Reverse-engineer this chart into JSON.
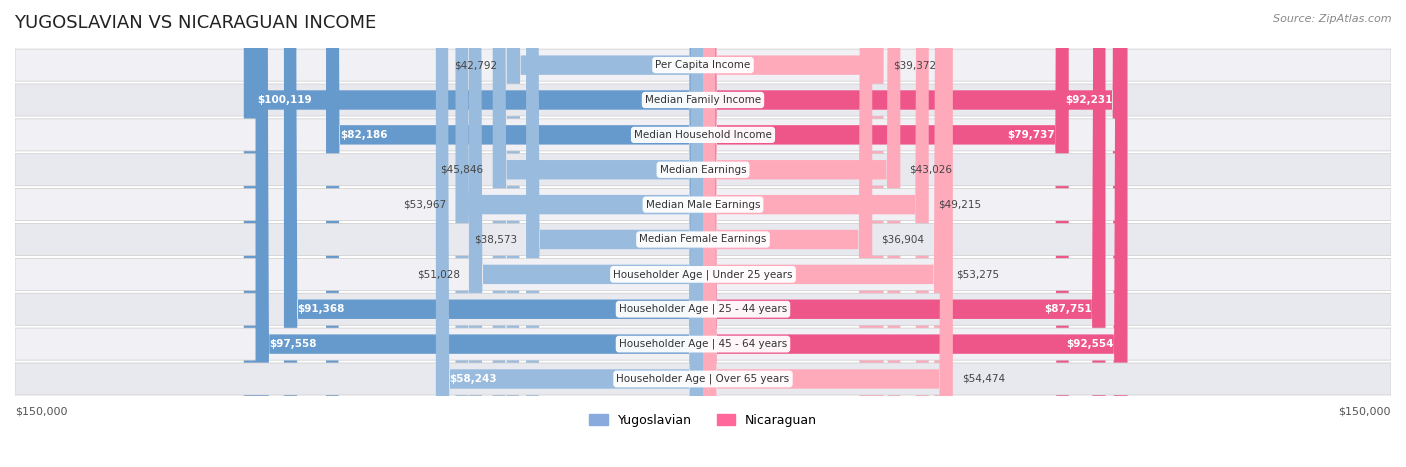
{
  "title": "YUGOSLAVIAN VS NICARAGUAN INCOME",
  "source": "Source: ZipAtlas.com",
  "max_val": 150000,
  "categories": [
    "Per Capita Income",
    "Median Family Income",
    "Median Household Income",
    "Median Earnings",
    "Median Male Earnings",
    "Median Female Earnings",
    "Householder Age | Under 25 years",
    "Householder Age | 25 - 44 years",
    "Householder Age | 45 - 64 years",
    "Householder Age | Over 65 years"
  ],
  "yugoslavian_values": [
    42792,
    100119,
    82186,
    45846,
    53967,
    38573,
    51028,
    91368,
    97558,
    58243
  ],
  "nicaraguan_values": [
    39372,
    92231,
    79737,
    43026,
    49215,
    36904,
    53275,
    87751,
    92554,
    54474
  ],
  "yugo_color_strong": "#6699CC",
  "yugo_color_light": "#99BBDD",
  "nica_color_strong": "#EE5588",
  "nica_color_light": "#FFAABB",
  "bg_row_color": "#F0F0F5",
  "bg_alt_row_color": "#E8E8EF",
  "label_bg_color": "#FFFFFF",
  "legend_yugo_color": "#88AADD",
  "legend_nica_color": "#FF6699"
}
